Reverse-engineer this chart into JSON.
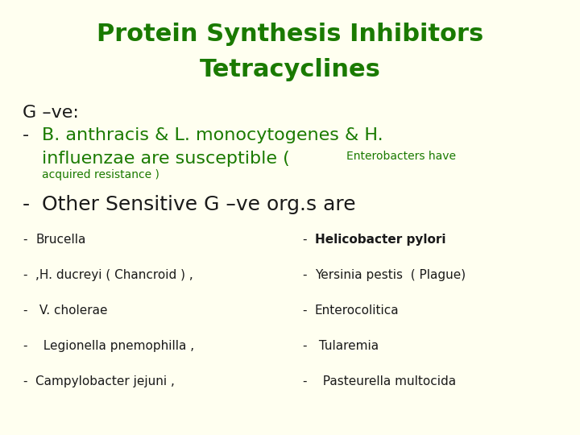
{
  "bg_color": "#FFFFF0",
  "title_line1": "Protein Synthesis Inhibitors",
  "title_line2": "Tetracyclines",
  "title_color": "#1a7a00",
  "title_fontsize": 22,
  "black_color": "#1a1a1a",
  "gve_label": "G –ve:",
  "gve_fontsize": 16,
  "bullet1_part1": "B. anthracis & L. monocytogenes & H.",
  "bullet1_part2": "influenzae are susceptible (",
  "bullet1_small": "Enterobacters have",
  "bullet1_small2": "acquired resistance )",
  "bullet1_fontsize": 16,
  "bullet1_small_fontsize": 10,
  "bullet2": "Other Sensitive G –ve org.s are",
  "bullet2_fontsize": 18,
  "left_items": [
    "Brucella",
    ",H. ducreyi ( Chancroid ) ,",
    " V. cholerae",
    "  Legionella pnemophilla ,",
    "Campylobacter jejuni ,"
  ],
  "right_items": [
    "Helicobacter pylori",
    "Yersinia pestis  ( Plague)",
    "Enterocolitica",
    " Tularemia",
    "  Pasteurella multocida"
  ],
  "right_bold": [
    true,
    false,
    false,
    false,
    false
  ],
  "list_fontsize": 11
}
